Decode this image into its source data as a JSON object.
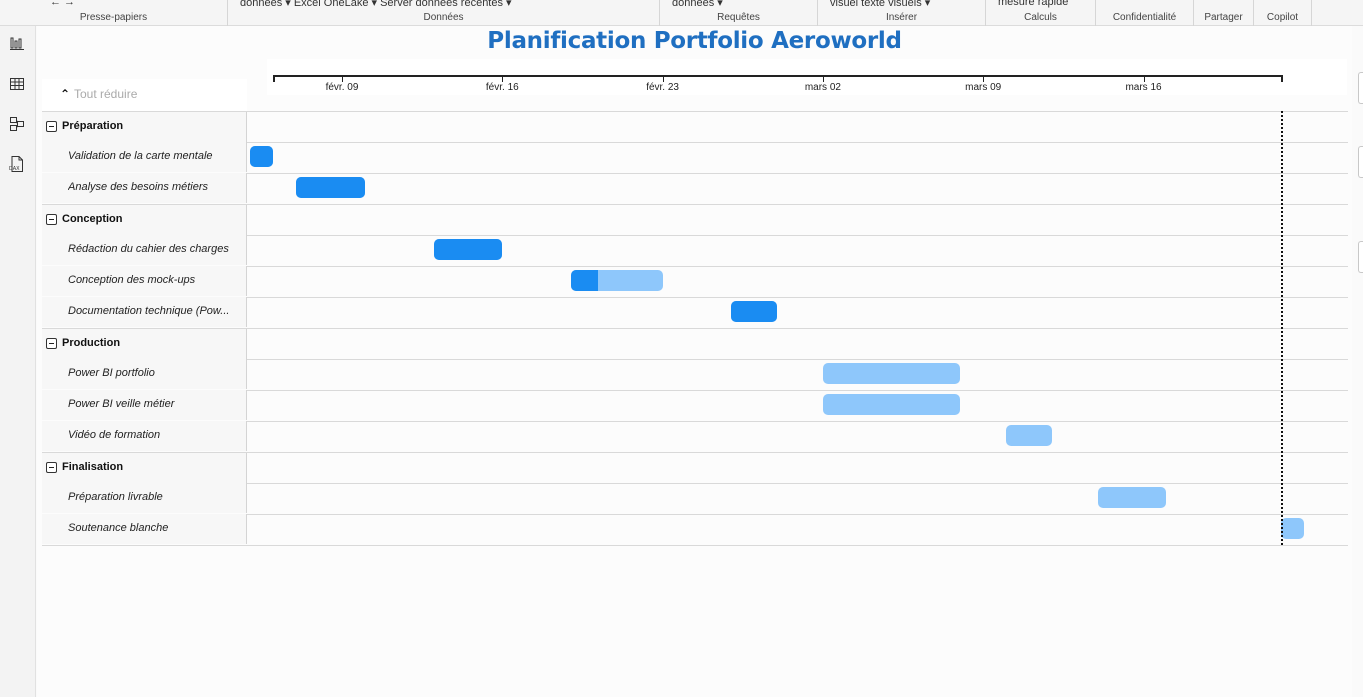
{
  "ribbon": {
    "groups": [
      {
        "label": "Presse-papiers",
        "cut_text": "← →"
      },
      {
        "label": "Données",
        "cut_text": "données ▾        Excel        OneLake ▾        Server   données                          récentes ▾"
      },
      {
        "label": "Requêtes",
        "cut_text": "données ▾"
      },
      {
        "label": "Insérer",
        "cut_text": "visuel        texte    visuels ▾"
      },
      {
        "label": "Calculs",
        "cut_text": "mesure    rapide"
      },
      {
        "label": "Confidentialité",
        "cut_text": ""
      },
      {
        "label": "Partager",
        "cut_text": ""
      },
      {
        "label": "Copilot",
        "cut_text": ""
      }
    ]
  },
  "rail": {
    "items": [
      {
        "name": "report-view-icon"
      },
      {
        "name": "table-view-icon"
      },
      {
        "name": "model-view-icon"
      },
      {
        "name": "dax-query-view-icon",
        "text": "DAX"
      }
    ]
  },
  "report": {
    "title": "Planification Portfolio Aeroworld",
    "collapse_all_label": "Tout réduire",
    "timeline_ticks": [
      "févr. 09",
      "févr. 16",
      "févr. 23",
      "mars 02",
      "mars 09",
      "mars 16"
    ],
    "today_marker": "2025-03-22",
    "colors": {
      "done": "#1a8cf2",
      "remaining": "#8ec7fb",
      "title": "#1f6fc1"
    },
    "groups": [
      {
        "name": "Préparation",
        "tasks": [
          {
            "name": "Validation de la carte mentale",
            "start": "2025-02-05",
            "end": "2025-02-06",
            "progress": 1.0
          },
          {
            "name": "Analyse des besoins métiers",
            "start": "2025-02-07",
            "end": "2025-02-10",
            "progress": 1.0
          }
        ]
      },
      {
        "name": "Conception",
        "tasks": [
          {
            "name": "Rédaction du cahier des charges",
            "start": "2025-02-13",
            "end": "2025-02-16",
            "progress": 1.0
          },
          {
            "name": "Conception des mock-ups",
            "start": "2025-02-19",
            "end": "2025-02-23",
            "progress": 0.3
          },
          {
            "name": "Documentation technique (Pow...",
            "start": "2025-02-26",
            "end": "2025-02-28",
            "progress": 1.0
          }
        ]
      },
      {
        "name": "Production",
        "tasks": [
          {
            "name": "Power BI portfolio",
            "start": "2025-03-02",
            "end": "2025-03-08",
            "progress": 0.0
          },
          {
            "name": "Power BI veille métier",
            "start": "2025-03-02",
            "end": "2025-03-08",
            "progress": 0.0
          },
          {
            "name": "Vidéo de formation",
            "start": "2025-03-10",
            "end": "2025-03-12",
            "progress": 0.0
          }
        ]
      },
      {
        "name": "Finalisation",
        "tasks": [
          {
            "name": "Préparation livrable",
            "start": "2025-03-14",
            "end": "2025-03-17",
            "progress": 0.0
          },
          {
            "name": "Soutenance blanche",
            "start": "2025-03-22",
            "end": "2025-03-23",
            "progress": 0.0
          }
        ]
      }
    ]
  }
}
